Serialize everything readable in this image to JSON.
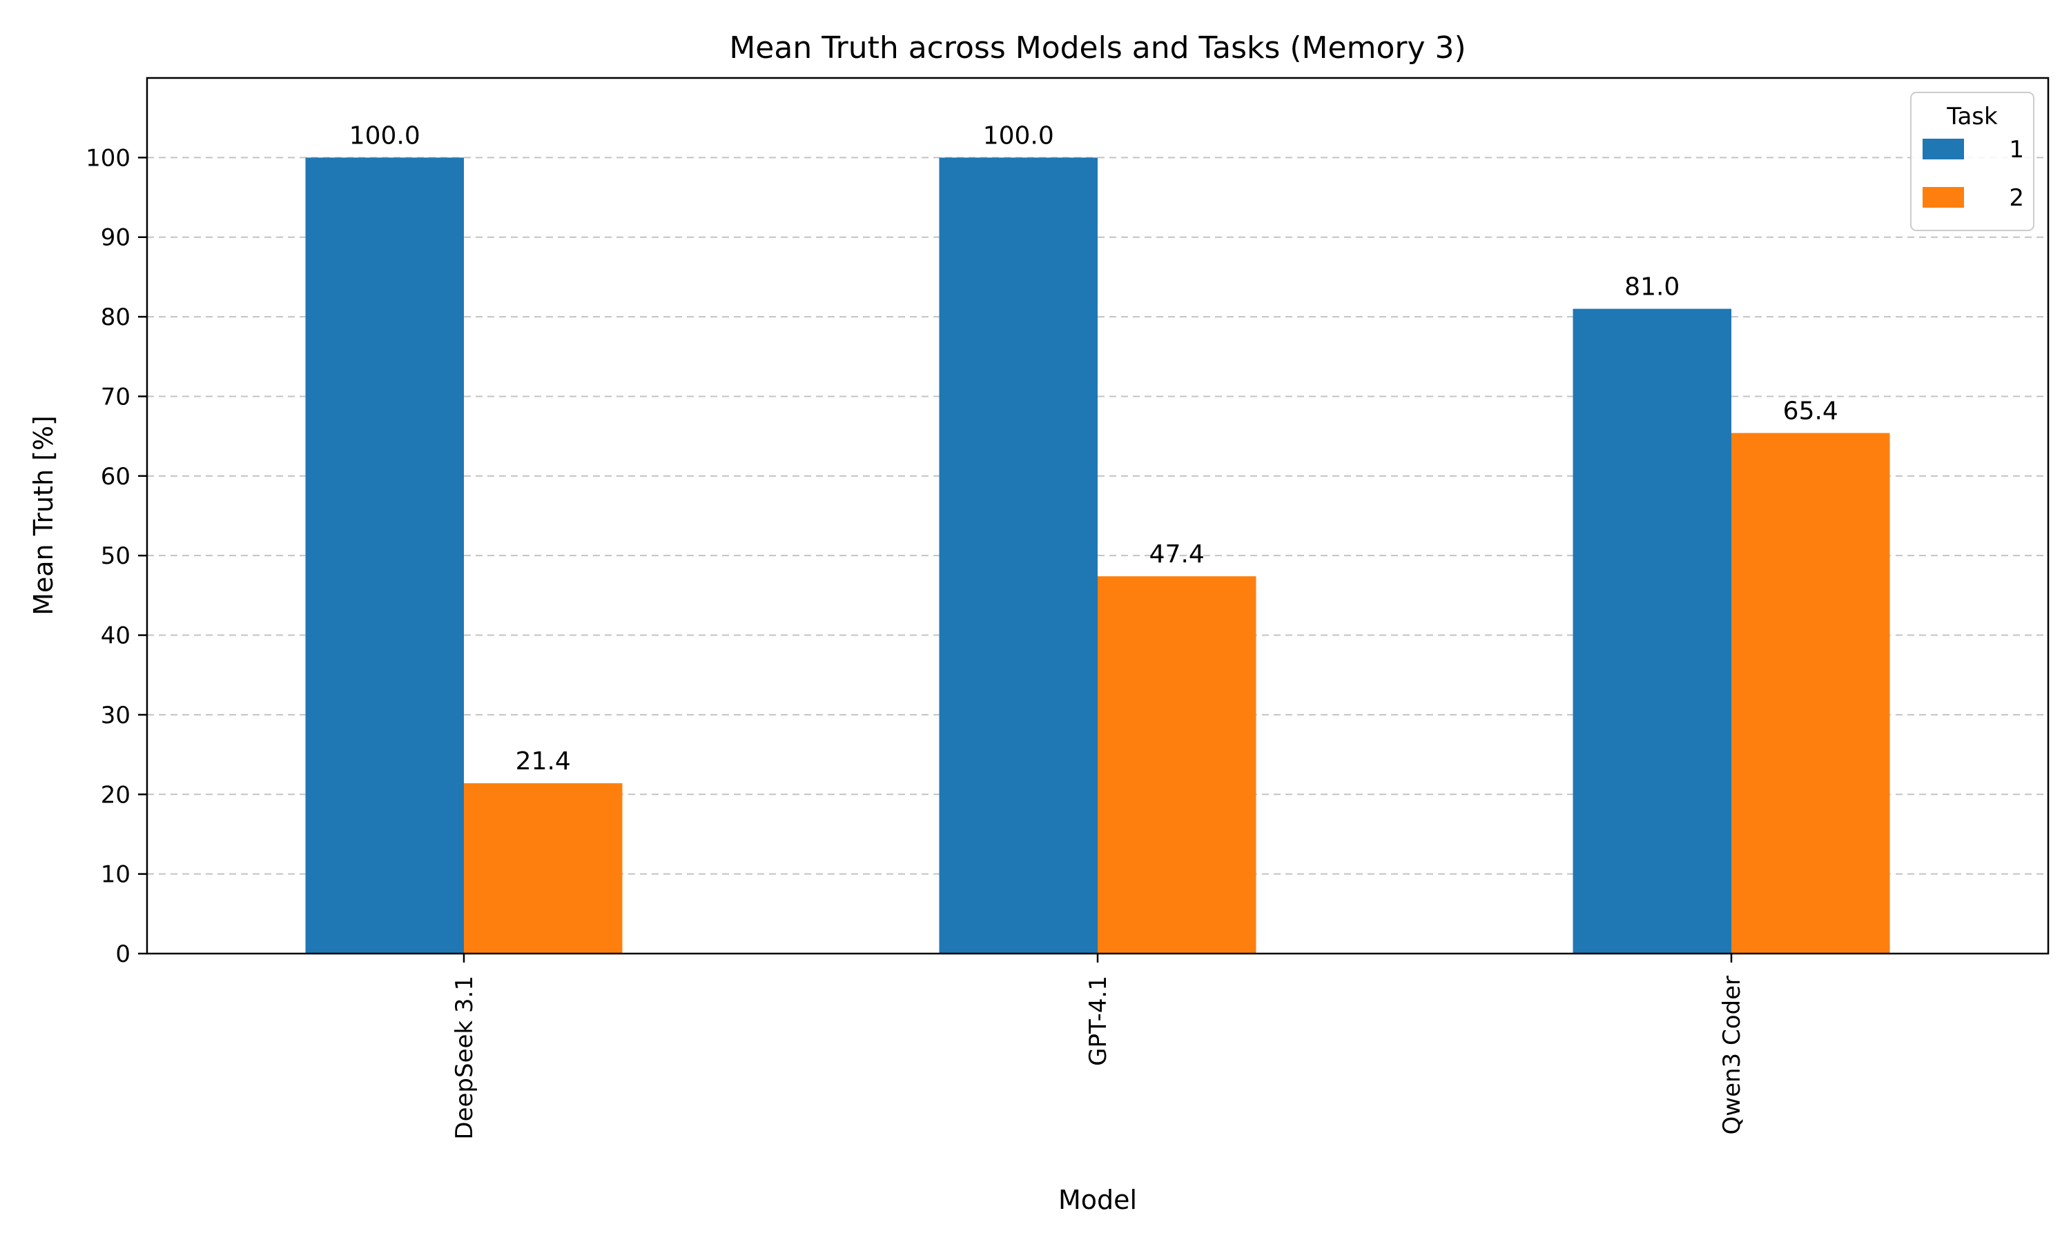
{
  "chart_data": {
    "type": "bar",
    "title": "Mean Truth across Models and Tasks (Memory 3)",
    "xlabel": "Model",
    "ylabel": "Mean Truth [%]",
    "categories": [
      "DeepSeek 3.1",
      "GPT-4.1",
      "Qwen3 Coder"
    ],
    "series": [
      {
        "name": "1",
        "color": "#1f77b4",
        "values": [
          100.0,
          100.0,
          81.0
        ]
      },
      {
        "name": "2",
        "color": "#ff7f0e",
        "values": [
          21.4,
          47.4,
          65.4
        ]
      }
    ],
    "ylim": [
      0,
      110
    ],
    "yticks": [
      0,
      10,
      20,
      30,
      40,
      50,
      60,
      70,
      80,
      90,
      100
    ],
    "grid": "y, dashed",
    "legend": {
      "title": "Task",
      "position": "top-right"
    }
  }
}
